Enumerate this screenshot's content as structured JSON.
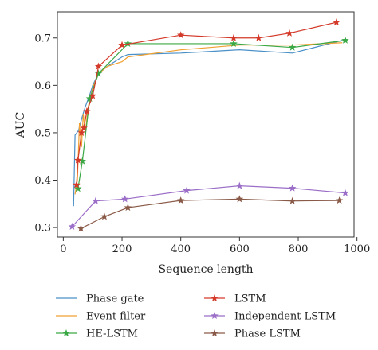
{
  "chart_data": {
    "type": "line",
    "xlabel": "Sequence length",
    "ylabel": "AUC",
    "xlim": [
      -20,
      990
    ],
    "ylim": [
      0.28,
      0.755
    ],
    "xticks": [
      0,
      200,
      400,
      600,
      800,
      1000
    ],
    "yticks": [
      0.3,
      0.4,
      0.5,
      0.6,
      0.7
    ],
    "grid": false,
    "legend_placement": "below",
    "series": [
      {
        "name": "Phase gate",
        "color": "#4a90c8",
        "marker": "none",
        "x": [
          35,
          40,
          52,
          65,
          75,
          90,
          100,
          120,
          150,
          200,
          220,
          400,
          600,
          780,
          950
        ],
        "y": [
          0.345,
          0.495,
          0.505,
          0.535,
          0.555,
          0.58,
          0.6,
          0.625,
          0.64,
          0.66,
          0.665,
          0.668,
          0.675,
          0.668,
          0.695
        ]
      },
      {
        "name": "Event filter",
        "color": "#f0a030",
        "marker": "none",
        "x": [
          40,
          48,
          55,
          62,
          68,
          75,
          85,
          100,
          120,
          150,
          200,
          220,
          400,
          600,
          780,
          950
        ],
        "y": [
          0.37,
          0.4,
          0.52,
          0.47,
          0.54,
          0.5,
          0.555,
          0.595,
          0.625,
          0.64,
          0.65,
          0.66,
          0.675,
          0.685,
          0.685,
          0.69
        ]
      },
      {
        "name": "HE-LSTM",
        "color": "#3aa845",
        "marker": "star",
        "x": [
          50,
          65,
          90,
          120,
          220,
          580,
          780,
          960
        ],
        "y": [
          0.382,
          0.44,
          0.572,
          0.625,
          0.688,
          0.688,
          0.68,
          0.695
        ]
      },
      {
        "name": "LSTM",
        "color": "#d43a2a",
        "marker": "star",
        "x": [
          45,
          50,
          62,
          70,
          80,
          100,
          120,
          200,
          400,
          580,
          665,
          770,
          930
        ],
        "y": [
          0.39,
          0.442,
          0.5,
          0.51,
          0.545,
          0.578,
          0.64,
          0.685,
          0.706,
          0.7,
          0.7,
          0.71,
          0.733
        ]
      },
      {
        "name": "Independent LSTM",
        "color": "#9b6ec8",
        "marker": "star",
        "x": [
          30,
          110,
          210,
          420,
          600,
          780,
          960
        ],
        "y": [
          0.302,
          0.356,
          0.36,
          0.378,
          0.388,
          0.383,
          0.373
        ]
      },
      {
        "name": "Phase LSTM",
        "color": "#8a5a48",
        "marker": "star",
        "x": [
          60,
          140,
          220,
          400,
          600,
          780,
          940
        ],
        "y": [
          0.298,
          0.323,
          0.342,
          0.357,
          0.36,
          0.356,
          0.357
        ]
      }
    ]
  }
}
